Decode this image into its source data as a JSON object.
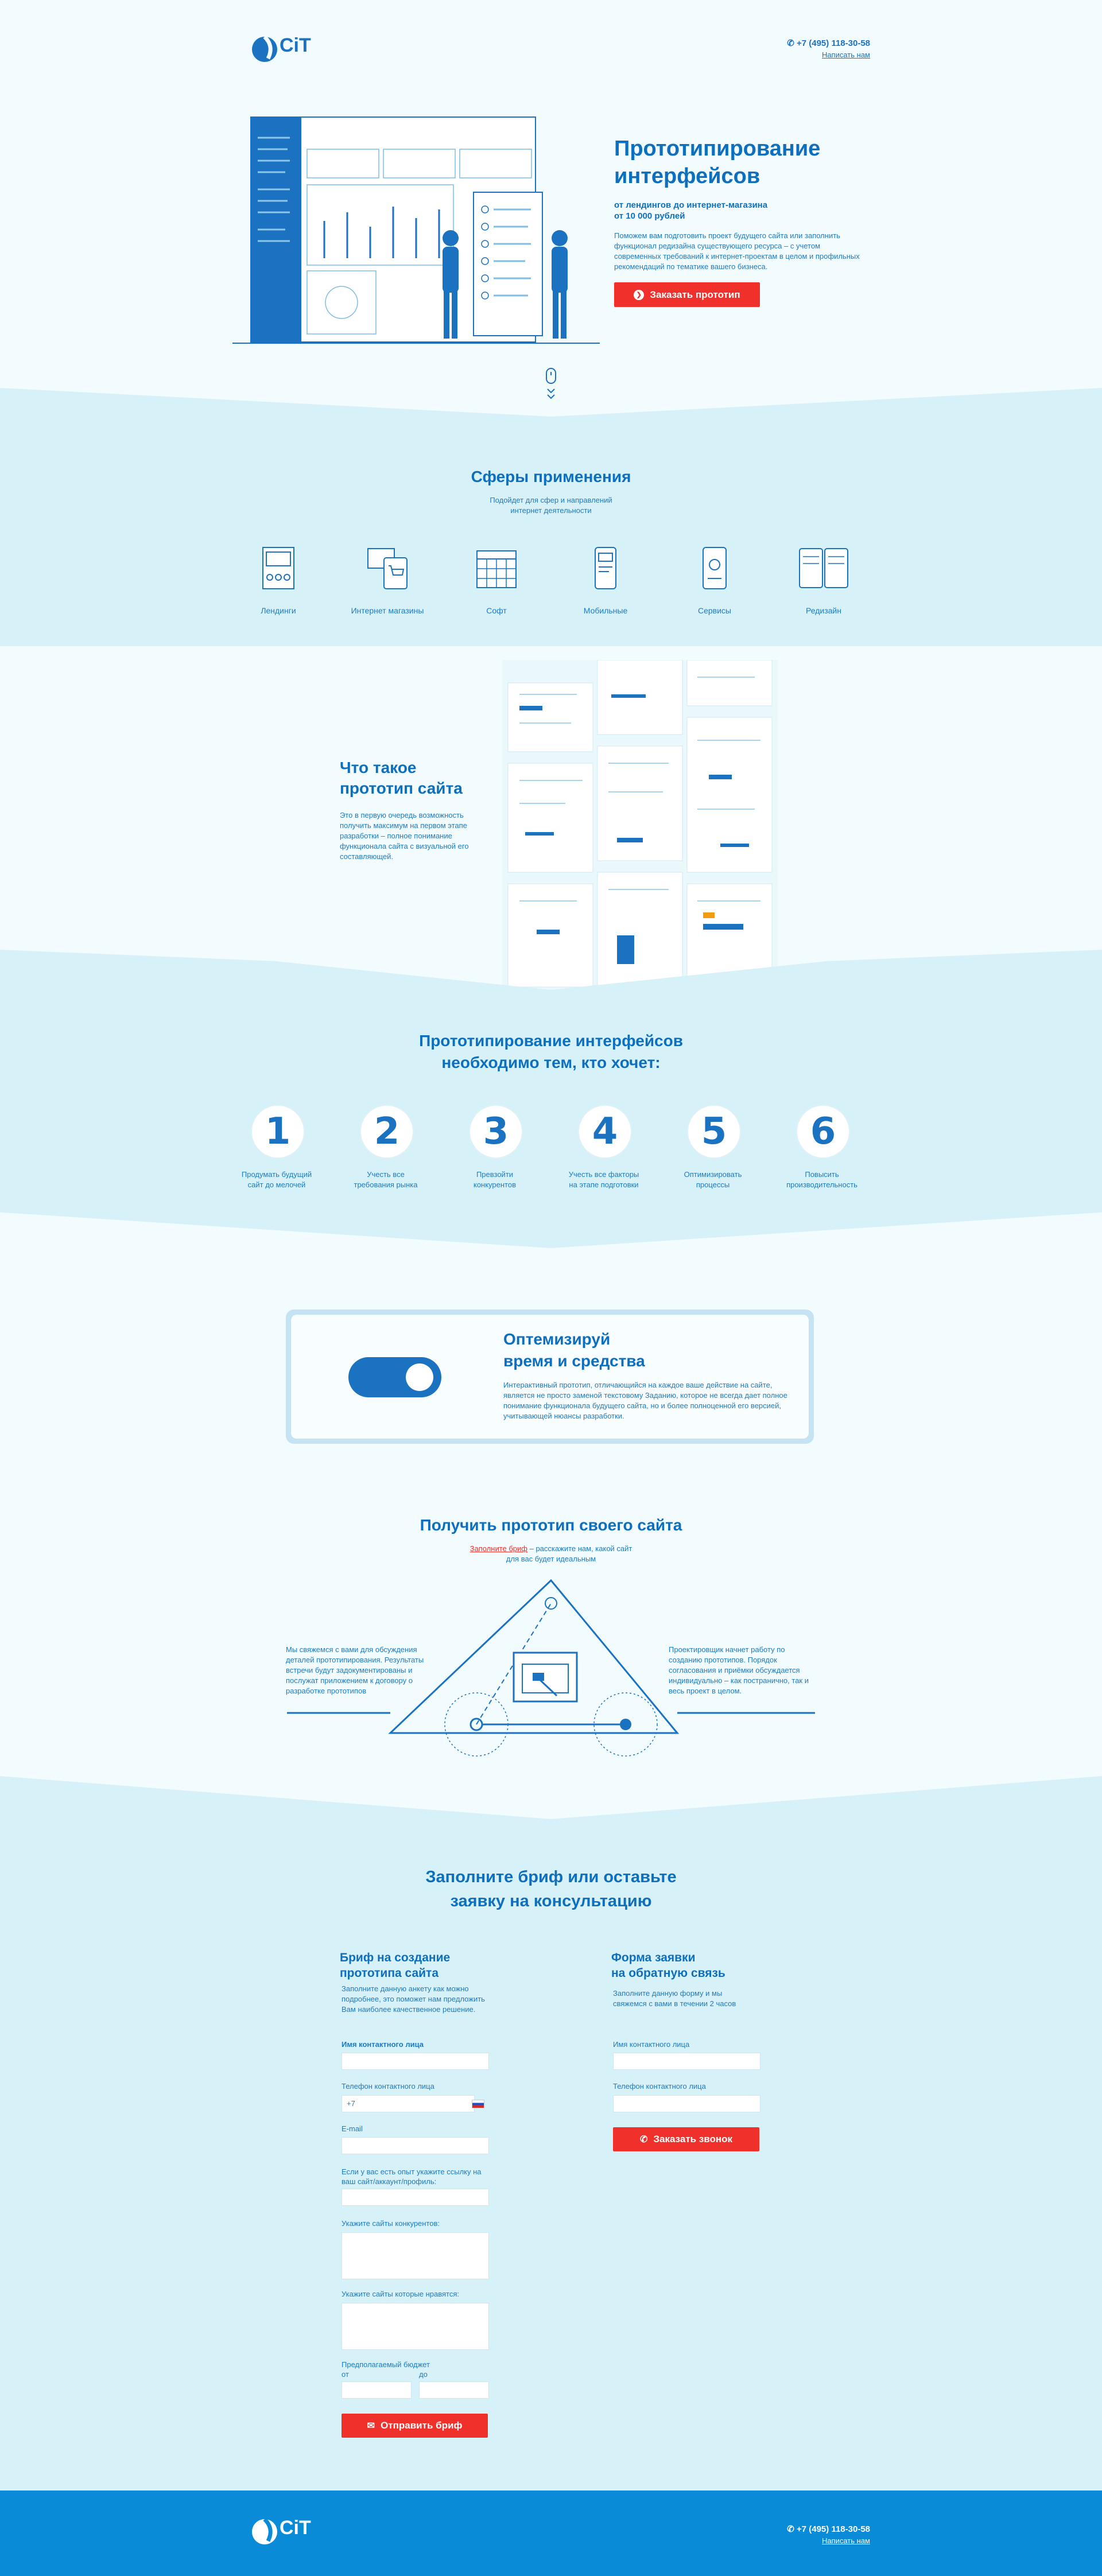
{
  "header": {
    "logo_text": "CiT",
    "phone": "+7 (495) 118-30-58",
    "write_us": "Написать нам"
  },
  "hero": {
    "title_line1": "Прототипирование",
    "title_line2": "интерфейсов",
    "subtitle_line1": "от лендингов до интернет-магазина",
    "subtitle_line2": "от 10 000 рублей",
    "description": "Поможем вам подготовить проект будущего сайта или заполнить функционал редизайна существующего ресурса – с учетом современных требований к интернет-проектам в целом и профильных рекомендаций по тематике вашего бизнеса.",
    "button": "Заказать  прототип"
  },
  "spheres": {
    "title": "Сферы применения",
    "subtitle_line1": "Подойдет для сфер и направлений",
    "subtitle_line2": "интернет деятельности",
    "items": [
      {
        "label": "Лендинги",
        "icon": "landing-icon"
      },
      {
        "label": "Интернет магазины",
        "icon": "shop-icon"
      },
      {
        "label": "Софт",
        "icon": "calendar-icon"
      },
      {
        "label": "Мобильные",
        "icon": "mobile-icon"
      },
      {
        "label": "Сервисы",
        "icon": "service-icon"
      },
      {
        "label": "Редизайн",
        "icon": "redesign-icon"
      }
    ]
  },
  "what_is": {
    "title_line1": "Что такое",
    "title_line2": "прототип сайта",
    "text": "Это в первую очередь возможность получить максимум на первом этапе разработки – полное понимание функционала сайта с визуальной его составляющей."
  },
  "needs": {
    "title_line1": "Прототипирование интерфейсов",
    "title_line2": "необходимо тем, кто хочет:",
    "items": [
      {
        "num": "1",
        "line1": "Продумать будущий",
        "line2": "сайт до мелочей"
      },
      {
        "num": "2",
        "line1": "Учесть все",
        "line2": "требования рынка"
      },
      {
        "num": "3",
        "line1": "Превзойти",
        "line2": "конкурентов"
      },
      {
        "num": "4",
        "line1": "Учесть все факторы",
        "line2": "на этапе подготовки"
      },
      {
        "num": "5",
        "line1": "Оптимизировать",
        "line2": "процессы"
      },
      {
        "num": "6",
        "line1": "Повысить",
        "line2": "производительность"
      }
    ]
  },
  "optimize": {
    "title_line1": "Оптемизируй",
    "title_line2": "время и средства",
    "text": "Интерактивный прототип, отличающийся на каждое ваше действие на сайте, является не просто заменой текстовому Заданию, которое не всегда дает полное понимание функционала будущего сайта, но и более полноценной его версией, учитывающей нюансы разработки."
  },
  "get_proto": {
    "title": "Получить прототип своего сайта",
    "sub_link": "Заполните бриф",
    "sub_rest": " – расскажите нам, какой сайт",
    "sub_line2": "для вас будет идеальным",
    "left_text": "Мы свяжемся с вами для обсуждения деталей прототипирования. Результаты встречи будут задокументированы и послужат приложением к договору о разработке прототипов",
    "right_text": "Проектировщик начнет работу по созданию прототипов. Порядок согласования и приёмки обсуждается индивидуально – как постранично, так и весь проект в целом."
  },
  "forms": {
    "title_line1": "Заполните бриф или оставьте",
    "title_line2": "заявку на консультацию",
    "brief": {
      "title_line1": "Бриф на создание",
      "title_line2": "прототипа сайта",
      "desc": "Заполните данную анкету как можно подробнее, это поможет нам предложить Вам наиболее качественное решение.",
      "name_label": "Имя контактного лица",
      "phone_label": "Телефон контактного лица",
      "phone_value": "+7",
      "email_label": "E-mail",
      "link_label": "Если у вас есть опыт укажите ссылку на ваш сайт/аккаунт/профиль:",
      "competitors_label": "Укажите сайты конкурентов:",
      "liked_label": "Укажите сайты которые нравятся:",
      "budget_label": "Предполагаемый бюджет",
      "from_label": "от",
      "to_label": "до",
      "button": "Отправить бриф"
    },
    "callback": {
      "title_line1": "Форма заявки",
      "title_line2": "на обратную связь",
      "desc": "Заполните данную форму и мы свяжемся с вами в течении 2 часов",
      "name_label": "Имя контактного лица",
      "phone_label": "Телефон контактного лица",
      "button": "Заказать звонок"
    }
  },
  "footer": {
    "logo_text": "CiT",
    "phone": "+7 (495) 118-30-58",
    "write_us": "Написать нам"
  },
  "colors": {
    "accent": "#0d6fbd",
    "band": "#d6f1f7",
    "button": "#f0302a",
    "footer": "#0a8bd8"
  }
}
